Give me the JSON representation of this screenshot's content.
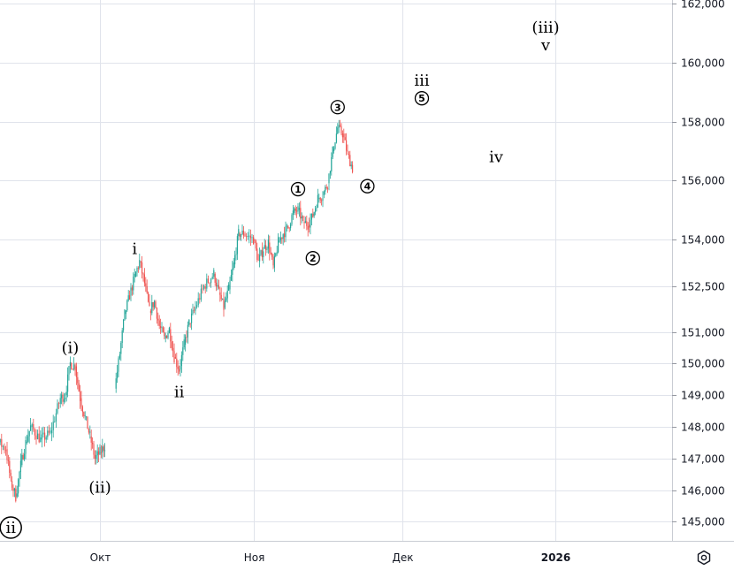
{
  "chart_data": {
    "type": "candlestick",
    "y_axis": {
      "position": "right",
      "ticks": [
        "145,000",
        "146,000",
        "147,000",
        "148,000",
        "149,000",
        "150,000",
        "151,000",
        "152,500",
        "154,000",
        "156,000",
        "158,000",
        "160,000",
        "162,000"
      ],
      "tick_values": [
        145.0,
        146.0,
        147.0,
        148.0,
        149.0,
        150.0,
        151.0,
        152.5,
        154.0,
        156.0,
        158.0,
        160.0,
        162.0
      ]
    },
    "x_axis": {
      "ticks": [
        {
          "label": "Окт",
          "date": "2025-10-01",
          "bold": false
        },
        {
          "label": "Ноя",
          "date": "2025-11-01",
          "bold": false
        },
        {
          "label": "Дек",
          "date": "2025-12-01",
          "bold": false
        },
        {
          "label": "2026",
          "date": "2026-01-01",
          "bold": true
        }
      ],
      "range": [
        "2025-09-06",
        "2026-01-21"
      ]
    },
    "price_path": [
      [
        "2025-09-06",
        147.6
      ],
      [
        "2025-09-08",
        148.0
      ],
      [
        "2025-09-10",
        147.6
      ],
      [
        "2025-09-12",
        147.3
      ],
      [
        "2025-09-13",
        146.3
      ],
      [
        "2025-09-14",
        145.8
      ],
      [
        "2025-09-15",
        146.8
      ],
      [
        "2025-09-16",
        147.5
      ],
      [
        "2025-09-17",
        148.0
      ],
      [
        "2025-09-19",
        147.6
      ],
      [
        "2025-09-21",
        147.8
      ],
      [
        "2025-09-23",
        148.9
      ],
      [
        "2025-09-24",
        149.0
      ],
      [
        "2025-09-25",
        150.0
      ],
      [
        "2025-09-26",
        149.9
      ],
      [
        "2025-09-27",
        148.9
      ],
      [
        "2025-09-28",
        148.3
      ],
      [
        "2025-09-29",
        147.7
      ],
      [
        "2025-09-30",
        147.0
      ],
      [
        "2025-10-01",
        147.2
      ],
      [
        "2025-10-02",
        147.4
      ],
      [
        "2025-10-04",
        149.2
      ],
      [
        "2025-10-05",
        150.3
      ],
      [
        "2025-10-06",
        151.6
      ],
      [
        "2025-10-07",
        152.2
      ],
      [
        "2025-10-08",
        152.8
      ],
      [
        "2025-10-09",
        153.3
      ],
      [
        "2025-10-10",
        152.6
      ],
      [
        "2025-10-11",
        151.7
      ],
      [
        "2025-10-12",
        152.0
      ],
      [
        "2025-10-13",
        151.2
      ],
      [
        "2025-10-14",
        150.8
      ],
      [
        "2025-10-15",
        151.1
      ],
      [
        "2025-10-16",
        150.2
      ],
      [
        "2025-10-17",
        149.8
      ],
      [
        "2025-10-18",
        150.6
      ],
      [
        "2025-10-19",
        151.3
      ],
      [
        "2025-10-20",
        151.7
      ],
      [
        "2025-10-22",
        152.5
      ],
      [
        "2025-10-24",
        152.9
      ],
      [
        "2025-10-25",
        152.3
      ],
      [
        "2025-10-26",
        151.8
      ],
      [
        "2025-10-27",
        152.4
      ],
      [
        "2025-10-28",
        153.2
      ],
      [
        "2025-10-29",
        154.2
      ],
      [
        "2025-10-30",
        154.2
      ],
      [
        "2025-11-01",
        154.0
      ],
      [
        "2025-11-02",
        153.3
      ],
      [
        "2025-11-03",
        153.7
      ],
      [
        "2025-11-04",
        153.9
      ],
      [
        "2025-11-05",
        153.1
      ],
      [
        "2025-11-06",
        153.9
      ],
      [
        "2025-11-07",
        154.2
      ],
      [
        "2025-11-08",
        154.4
      ],
      [
        "2025-11-09",
        154.9
      ],
      [
        "2025-11-10",
        155.0
      ],
      [
        "2025-11-11",
        154.6
      ],
      [
        "2025-11-12",
        154.5
      ],
      [
        "2025-11-13",
        154.8
      ],
      [
        "2025-11-14",
        155.4
      ],
      [
        "2025-11-15",
        155.5
      ],
      [
        "2025-11-16",
        155.9
      ],
      [
        "2025-11-17",
        157.0
      ],
      [
        "2025-11-18",
        157.8
      ],
      [
        "2025-11-19",
        157.6
      ],
      [
        "2025-11-20",
        156.9
      ],
      [
        "2025-11-21",
        156.4
      ]
    ],
    "annotations": [
      {
        "label": "ii",
        "date": "2025-09-13",
        "price": 144.8,
        "style": "circled"
      },
      {
        "label": "(i)",
        "date": "2025-09-25",
        "price": 150.5,
        "style": "paren"
      },
      {
        "label": "(ii)",
        "date": "2025-10-01",
        "price": 146.1,
        "style": "paren"
      },
      {
        "label": "i",
        "date": "2025-10-08",
        "price": 153.7,
        "style": "plain"
      },
      {
        "label": "ii",
        "date": "2025-10-17",
        "price": 149.1,
        "style": "plain"
      },
      {
        "label": "1",
        "date": "2025-11-10",
        "price": 155.7,
        "style": "circled_small"
      },
      {
        "label": "2",
        "date": "2025-11-13",
        "price": 153.4,
        "style": "circled_small"
      },
      {
        "label": "3",
        "date": "2025-11-18",
        "price": 158.5,
        "style": "circled_small"
      },
      {
        "label": "4",
        "date": "2025-11-24",
        "price": 155.8,
        "style": "circled_small"
      },
      {
        "label": "iii",
        "date": "2025-12-05",
        "price": 159.4,
        "style": "plain"
      },
      {
        "label": "5",
        "date": "2025-12-05",
        "price": 158.8,
        "style": "circled_small"
      },
      {
        "label": "iv",
        "date": "2025-12-20",
        "price": 156.8,
        "style": "plain"
      },
      {
        "label": "(iii)",
        "date": "2025-12-30",
        "price": 161.2,
        "style": "paren"
      },
      {
        "label": "v",
        "date": "2025-12-30",
        "price": 160.6,
        "style": "plain"
      }
    ],
    "colors": {
      "up": "#26a69a",
      "down": "#ef5350",
      "grid": "#e0e3eb",
      "axis_text": "#131722",
      "background": "#ffffff"
    },
    "grid": true
  },
  "ui": {
    "settings_icon": "gear-icon"
  }
}
